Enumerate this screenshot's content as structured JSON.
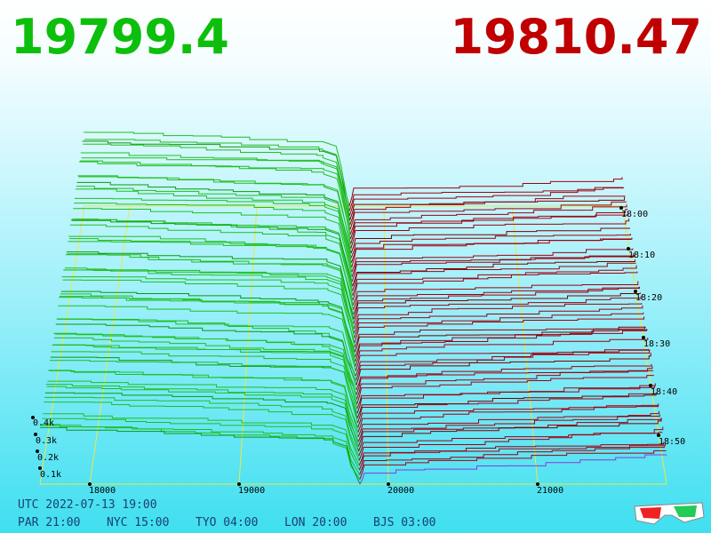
{
  "header": {
    "bid": "19799.4",
    "ask": "19810.47"
  },
  "price_axis": [
    "18000",
    "19000",
    "20000",
    "21000"
  ],
  "volume_axis": [
    "0.1k",
    "0.2k",
    "0.3k",
    "0.4k"
  ],
  "time_axis": [
    "18:00",
    "18:10",
    "18:20",
    "18:30",
    "18:40",
    "18:50"
  ],
  "footer": {
    "utc": "UTC 2022-07-13 19:00",
    "clocks": [
      "PAR 21:00",
      "NYC 15:00",
      "TYO 04:00",
      "LON 20:00",
      "BJS 03:00"
    ]
  }
}
